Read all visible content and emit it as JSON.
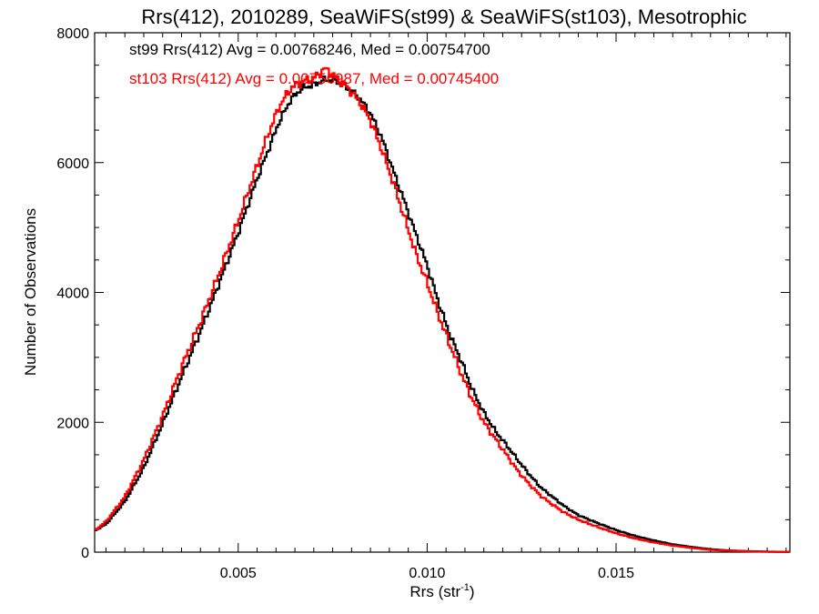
{
  "chart_data": {
    "type": "line",
    "title": "Rrs(412), 2010289, SeaWiFS(st99) & SeaWiFS(st103), Mesotrophic",
    "xlabel": "Rrs (str",
    "xlabel_sup": "-1",
    "xlabel_end": ")",
    "ylabel": "Number of Observations",
    "xlim": [
      0.0012,
      0.0196
    ],
    "ylim": [
      0,
      8000
    ],
    "x_ticks": [
      0.005,
      0.01,
      0.015
    ],
    "x_tick_labels": [
      "0.005",
      "0.010",
      "0.015"
    ],
    "y_ticks": [
      0,
      2000,
      4000,
      6000,
      8000
    ],
    "y_tick_labels": [
      "0",
      "2000",
      "4000",
      "6000",
      "8000"
    ],
    "grid": false,
    "legend_placement": "top-left",
    "step_style": "histogram",
    "series": [
      {
        "name": "st99",
        "stats_text": "st99 Rrs(412) Avg = 0.00768246, Med = 0.00754700",
        "color": "#000000",
        "x": [
          0.0012,
          0.0015,
          0.002,
          0.0025,
          0.003,
          0.0035,
          0.004,
          0.0045,
          0.005,
          0.0055,
          0.0058,
          0.0061,
          0.0064,
          0.0067,
          0.007,
          0.0073,
          0.0076,
          0.0079,
          0.0082,
          0.0085,
          0.0088,
          0.0091,
          0.0094,
          0.0097,
          0.01,
          0.0103,
          0.0106,
          0.0109,
          0.0112,
          0.0115,
          0.0118,
          0.0121,
          0.0124,
          0.0127,
          0.013,
          0.0133,
          0.0136,
          0.014,
          0.0145,
          0.015,
          0.0155,
          0.016,
          0.0165,
          0.017,
          0.0175,
          0.018,
          0.0185,
          0.019,
          0.0196
        ],
        "y": [
          330,
          430,
          780,
          1300,
          1980,
          2700,
          3400,
          4150,
          4920,
          5750,
          6200,
          6650,
          6980,
          7150,
          7200,
          7280,
          7260,
          7150,
          7000,
          6760,
          6380,
          5880,
          5400,
          4900,
          4420,
          3850,
          3350,
          2950,
          2500,
          2150,
          1870,
          1650,
          1420,
          1200,
          1000,
          860,
          720,
          570,
          450,
          340,
          250,
          180,
          120,
          80,
          45,
          25,
          15,
          8,
          3
        ]
      },
      {
        "name": "st103",
        "stats_text": "st103 Rrs(412) Avg = 0.00756987, Med = 0.00745400",
        "color": "#ff0000",
        "x": [
          0.0012,
          0.0015,
          0.002,
          0.0025,
          0.003,
          0.0035,
          0.004,
          0.0045,
          0.005,
          0.0055,
          0.0058,
          0.0061,
          0.0064,
          0.0067,
          0.007,
          0.0073,
          0.0076,
          0.0079,
          0.0082,
          0.0085,
          0.0088,
          0.0091,
          0.0094,
          0.0097,
          0.01,
          0.0103,
          0.0106,
          0.0109,
          0.0112,
          0.0115,
          0.0118,
          0.0121,
          0.0124,
          0.0127,
          0.013,
          0.0133,
          0.0136,
          0.014,
          0.0145,
          0.015,
          0.0155,
          0.016,
          0.0165,
          0.017,
          0.0175,
          0.018,
          0.0185,
          0.019,
          0.0196
        ],
        "y": [
          330,
          470,
          850,
          1420,
          2100,
          2850,
          3550,
          4300,
          5100,
          5950,
          6450,
          6880,
          7150,
          7250,
          7300,
          7450,
          7300,
          7150,
          6950,
          6650,
          6200,
          5700,
          5150,
          4600,
          4150,
          3650,
          3200,
          2750,
          2350,
          2000,
          1750,
          1500,
          1250,
          1050,
          870,
          740,
          620,
          500,
          390,
          290,
          210,
          150,
          100,
          65,
          35,
          20,
          12,
          6,
          2
        ]
      }
    ]
  }
}
